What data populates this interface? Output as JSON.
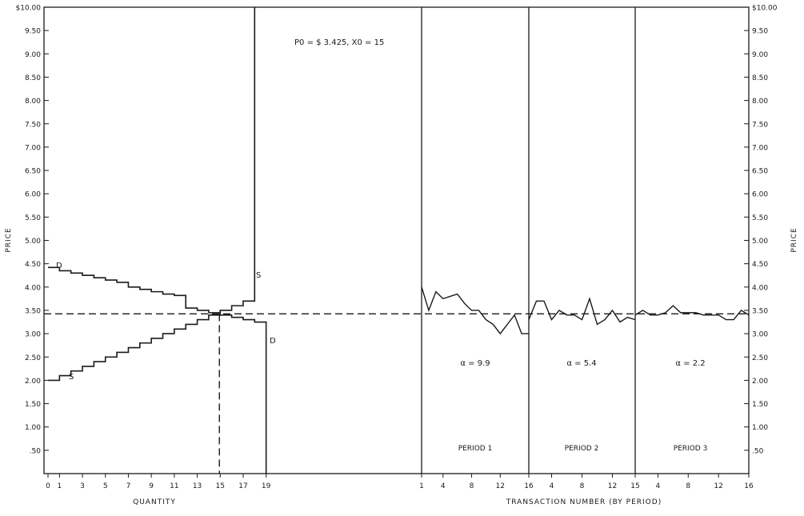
{
  "chart_data": {
    "type": "line",
    "ylabel": "PRICE",
    "ylim": [
      0,
      10
    ],
    "y_ticks": [
      "$10.00",
      "9.50",
      "9.00",
      "8.50",
      "8.00",
      "7.50",
      "7.00",
      "6.50",
      "6.00",
      "5.50",
      "5.00",
      "4.50",
      "4.00",
      "3.50",
      "3.00",
      "2.50",
      "2.00",
      "1.50",
      "1.00",
      ".50"
    ],
    "y_ticks_right": [
      "$10.00",
      "9.50",
      "9.00",
      "8.50",
      "8.00",
      "7.50",
      "7.00",
      "6.50",
      "6.00",
      "5.50",
      "5.00",
      "4.50",
      "4.00",
      "3.50",
      "3.00",
      "2.50",
      "2.00",
      "1.50",
      "1.00",
      ".50"
    ],
    "equilibrium_label": "P0 = $ 3.425,  X0 = 15",
    "equilibrium_price": 3.425,
    "equilibrium_quantity": 15,
    "left_panel": {
      "xlabel": "QUANTITY",
      "x_ticks": [
        "0",
        "1",
        "3",
        "5",
        "7",
        "9",
        "11",
        "13",
        "15",
        "17",
        "19"
      ],
      "demand": {
        "name": "D",
        "steps": [
          [
            0,
            4.42
          ],
          [
            1,
            4.35
          ],
          [
            2,
            4.3
          ],
          [
            3,
            4.25
          ],
          [
            4,
            4.2
          ],
          [
            5,
            4.15
          ],
          [
            6,
            4.1
          ],
          [
            7,
            4.0
          ],
          [
            8,
            3.95
          ],
          [
            9,
            3.9
          ],
          [
            10,
            3.85
          ],
          [
            11,
            3.82
          ],
          [
            12,
            3.55
          ],
          [
            13,
            3.5
          ],
          [
            14,
            3.45
          ],
          [
            15,
            3.4
          ],
          [
            16,
            3.35
          ],
          [
            17,
            3.3
          ],
          [
            18,
            3.25
          ],
          [
            19,
            0
          ]
        ],
        "end_label": "D"
      },
      "supply": {
        "name": "S",
        "steps": [
          [
            0,
            2.0
          ],
          [
            1,
            2.1
          ],
          [
            2,
            2.2
          ],
          [
            3,
            2.3
          ],
          [
            4,
            2.4
          ],
          [
            5,
            2.5
          ],
          [
            6,
            2.6
          ],
          [
            7,
            2.7
          ],
          [
            8,
            2.8
          ],
          [
            9,
            2.9
          ],
          [
            10,
            3.0
          ],
          [
            11,
            3.1
          ],
          [
            12,
            3.2
          ],
          [
            13,
            3.3
          ],
          [
            14,
            3.4
          ],
          [
            15,
            3.5
          ],
          [
            16,
            3.6
          ],
          [
            17,
            3.7
          ],
          [
            18,
            10.0
          ]
        ],
        "end_label": "S"
      }
    },
    "right_panel": {
      "xlabel": "TRANSACTION NUMBER (BY PERIOD)",
      "periods": [
        {
          "name": "PERIOD 1",
          "alpha_label": "α = 9.9",
          "x_ticks": [
            "1",
            "4",
            "8",
            "12",
            "16"
          ],
          "n": 16,
          "prices": [
            4.0,
            3.5,
            3.9,
            3.75,
            3.8,
            3.85,
            3.65,
            3.5,
            3.5,
            3.3,
            3.2,
            3.0,
            3.2,
            3.4,
            3.0,
            3.0
          ]
        },
        {
          "name": "PERIOD 2",
          "alpha_label": "α = 5.4",
          "x_ticks": [
            "4",
            "8",
            "12",
            "15"
          ],
          "n": 15,
          "prices": [
            3.3,
            3.7,
            3.7,
            3.3,
            3.5,
            3.4,
            3.4,
            3.3,
            3.75,
            3.2,
            3.3,
            3.5,
            3.25,
            3.35,
            3.3
          ]
        },
        {
          "name": "PERIOD 3",
          "alpha_label": "α = 2.2",
          "x_ticks": [
            "4",
            "8",
            "12",
            "16"
          ],
          "n": 16,
          "prices": [
            3.4,
            3.5,
            3.4,
            3.4,
            3.45,
            3.6,
            3.45,
            3.45,
            3.45,
            3.4,
            3.4,
            3.4,
            3.3,
            3.3,
            3.5,
            3.4
          ]
        }
      ]
    }
  }
}
